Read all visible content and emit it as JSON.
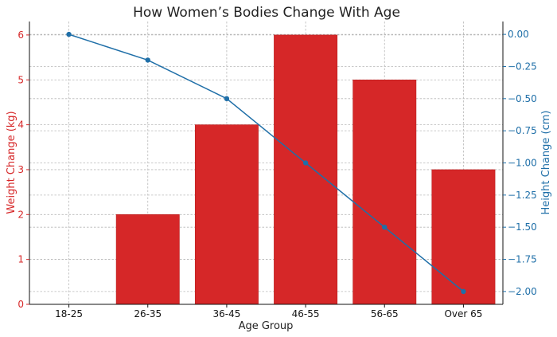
{
  "chart_data": {
    "type": "bar",
    "title": "How Women’s Bodies Change With Age",
    "xlabel": "Age Group",
    "categories": [
      "18-25",
      "26-35",
      "36-45",
      "46-55",
      "56-65",
      "Over 65"
    ],
    "grid": true,
    "series": [
      {
        "name": "Weight Change (kg)",
        "type": "bar",
        "axis": "left",
        "color": "#d62728",
        "values": [
          0,
          2,
          4,
          6,
          5,
          3
        ]
      },
      {
        "name": "Height Change (cm)",
        "type": "line",
        "axis": "right",
        "color": "#1f6fa8",
        "values": [
          0.0,
          -0.2,
          -0.5,
          -1.0,
          -1.5,
          -2.0
        ]
      }
    ],
    "y_left": {
      "label": "Weight Change (kg)",
      "color": "#d62728",
      "ylim": [
        0,
        6.3
      ],
      "ticks": [
        0,
        1,
        2,
        3,
        4,
        5,
        6
      ],
      "tick_labels": [
        "0",
        "1",
        "2",
        "3",
        "4",
        "5",
        "6"
      ]
    },
    "y_right": {
      "label": "Height Change (cm)",
      "color": "#1f6fa8",
      "ylim": [
        -2.1,
        0.1
      ],
      "ticks": [
        0.0,
        -0.25,
        -0.5,
        -0.75,
        -1.0,
        -1.25,
        -1.5,
        -1.75,
        -2.0
      ],
      "tick_labels": [
        "0.00",
        "−0.25",
        "−0.50",
        "−0.75",
        "−1.00",
        "−1.25",
        "−1.50",
        "−1.75",
        "−2.00"
      ]
    }
  }
}
